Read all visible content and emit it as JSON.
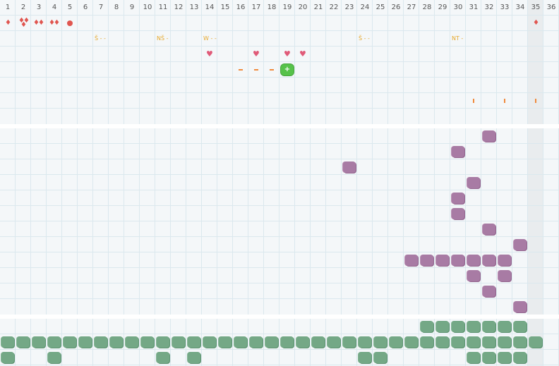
{
  "columns": [
    "1",
    "2",
    "3",
    "4",
    "5",
    "6",
    "7",
    "8",
    "9",
    "10",
    "11",
    "12",
    "13",
    "14",
    "15",
    "16",
    "17",
    "18",
    "19",
    "20",
    "21",
    "22",
    "23",
    "24",
    "25",
    "26",
    "27",
    "28",
    "29",
    "30",
    "31",
    "32",
    "33",
    "34",
    "35",
    "36"
  ],
  "highlight_column": 35,
  "colors": {
    "grid": "#dbe8ee",
    "background": "#f4f7f9",
    "purple": "#a87ba4",
    "green": "#74a886",
    "red": "#e0554f",
    "gold": "#e6a82c",
    "pink": "#e05a78",
    "orange": "#f08a3c",
    "active_green": "#57c24a"
  },
  "top_panel": {
    "drops": [
      {
        "col": 1,
        "row": 2,
        "count": 1
      },
      {
        "col": 2,
        "row": 2,
        "count": 3
      },
      {
        "col": 3,
        "row": 2,
        "count": 2
      },
      {
        "col": 4,
        "row": 2,
        "count": 2
      },
      {
        "col": 35,
        "row": 2,
        "count": 1
      }
    ],
    "dots": [
      {
        "col": 5,
        "row": 2
      }
    ],
    "labels": [
      {
        "col": 7,
        "row": 3,
        "text": "Š - -"
      },
      {
        "col": 11,
        "row": 3,
        "text": "NŠ -"
      },
      {
        "col": 14,
        "row": 3,
        "text": "W - -"
      },
      {
        "col": 24,
        "row": 3,
        "text": "Š - -"
      },
      {
        "col": 30,
        "row": 3,
        "text": "NT -"
      }
    ],
    "hearts": [
      {
        "col": 14,
        "row": 4
      },
      {
        "col": 17,
        "row": 4
      },
      {
        "col": 19,
        "row": 4
      },
      {
        "col": 20,
        "row": 4
      }
    ],
    "dashes": [
      {
        "col": 16,
        "row": 5
      },
      {
        "col": 17,
        "row": 5
      },
      {
        "col": 18,
        "row": 5
      }
    ],
    "active_cell": {
      "col": 19,
      "row": 5,
      "symbol": "+"
    },
    "ticks": [
      {
        "col": 31,
        "row": 7
      },
      {
        "col": 33,
        "row": 7
      },
      {
        "col": 35,
        "row": 7
      }
    ]
  },
  "middle_panel": {
    "purple_blobs": [
      [
        32,
        1
      ],
      [
        30,
        2
      ],
      [
        23,
        3
      ],
      [
        31,
        4
      ],
      [
        30,
        5
      ],
      [
        30,
        6
      ],
      [
        32,
        7
      ],
      [
        34,
        8
      ],
      [
        27,
        9
      ],
      [
        28,
        9
      ],
      [
        29,
        9
      ],
      [
        30,
        9
      ],
      [
        31,
        9
      ],
      [
        32,
        9
      ],
      [
        33,
        9
      ],
      [
        31,
        10
      ],
      [
        33,
        10
      ],
      [
        32,
        11
      ],
      [
        34,
        12
      ]
    ]
  },
  "bottom_panel": {
    "green_blobs": [
      [
        28,
        1
      ],
      [
        29,
        1
      ],
      [
        30,
        1
      ],
      [
        31,
        1
      ],
      [
        32,
        1
      ],
      [
        33,
        1
      ],
      [
        34,
        1
      ],
      [
        1,
        2
      ],
      [
        2,
        2
      ],
      [
        3,
        2
      ],
      [
        4,
        2
      ],
      [
        5,
        2
      ],
      [
        6,
        2
      ],
      [
        7,
        2
      ],
      [
        8,
        2
      ],
      [
        9,
        2
      ],
      [
        10,
        2
      ],
      [
        11,
        2
      ],
      [
        12,
        2
      ],
      [
        13,
        2
      ],
      [
        14,
        2
      ],
      [
        15,
        2
      ],
      [
        16,
        2
      ],
      [
        17,
        2
      ],
      [
        18,
        2
      ],
      [
        19,
        2
      ],
      [
        20,
        2
      ],
      [
        21,
        2
      ],
      [
        22,
        2
      ],
      [
        23,
        2
      ],
      [
        24,
        2
      ],
      [
        25,
        2
      ],
      [
        26,
        2
      ],
      [
        27,
        2
      ],
      [
        28,
        2
      ],
      [
        29,
        2
      ],
      [
        30,
        2
      ],
      [
        31,
        2
      ],
      [
        32,
        2
      ],
      [
        33,
        2
      ],
      [
        34,
        2
      ],
      [
        35,
        2
      ],
      [
        1,
        3
      ],
      [
        4,
        3
      ],
      [
        11,
        3
      ],
      [
        13,
        3
      ],
      [
        24,
        3
      ],
      [
        25,
        3
      ],
      [
        31,
        3
      ],
      [
        32,
        3
      ],
      [
        33,
        3
      ],
      [
        34,
        3
      ]
    ]
  }
}
